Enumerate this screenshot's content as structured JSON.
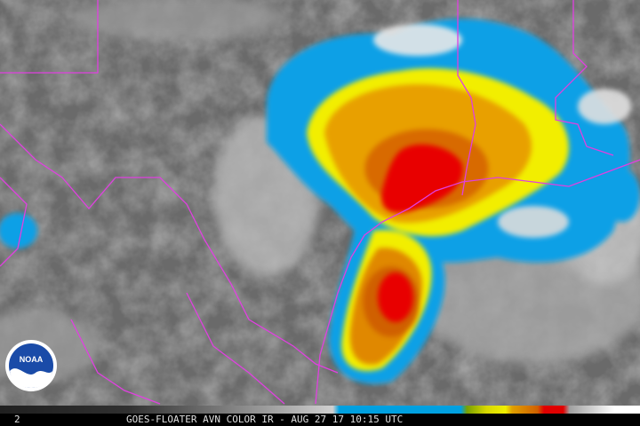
{
  "frame_label": "2",
  "caption": "GOES-FLOATER AVN COLOR IR - AUG 27 17 10:15 UTC",
  "logo": "NOAA"
}
